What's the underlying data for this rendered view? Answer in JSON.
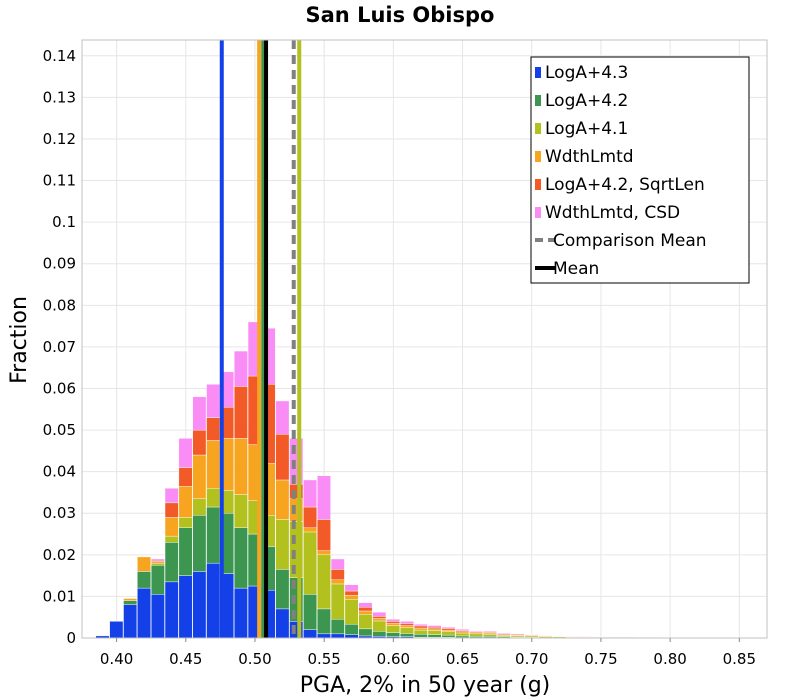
{
  "chart_data": {
    "type": "bar",
    "stacked": true,
    "title": "San Luis Obispo",
    "xlabel": "PGA, 2% in 50 year (g)",
    "ylabel": "Fraction",
    "xlim": [
      0.375,
      0.87
    ],
    "ylim": [
      0,
      0.1438
    ],
    "xticks": [
      "0.40",
      "0.45",
      "0.50",
      "0.55",
      "0.60",
      "0.65",
      "0.70",
      "0.75",
      "0.80",
      "0.85"
    ],
    "yticks": [
      "0",
      "0.01",
      "0.02",
      "0.03",
      "0.04",
      "0.05",
      "0.06",
      "0.07",
      "0.08",
      "0.09",
      "0.1",
      "0.11",
      "0.12",
      "0.13",
      "0.14"
    ],
    "grid": true,
    "legend_position": "top-right",
    "bin_width": 0.01,
    "x": [
      0.39,
      0.4,
      0.41,
      0.42,
      0.43,
      0.44,
      0.45,
      0.46,
      0.47,
      0.48,
      0.49,
      0.5,
      0.51,
      0.52,
      0.53,
      0.54,
      0.55,
      0.56,
      0.57,
      0.58,
      0.59,
      0.6,
      0.61,
      0.62,
      0.63,
      0.64,
      0.65,
      0.66,
      0.67,
      0.68,
      0.69,
      0.7,
      0.71,
      0.72,
      0.73,
      0.74,
      0.75,
      0.76,
      0.77,
      0.78,
      0.79,
      0.8,
      0.81,
      0.82,
      0.83,
      0.84,
      0.85
    ],
    "series": [
      {
        "name": "LogA+4.3",
        "color": "#1440e8",
        "values": [
          0.0005,
          0.004,
          0.008,
          0.012,
          0.0105,
          0.0135,
          0.015,
          0.016,
          0.018,
          0.0155,
          0.012,
          0.0125,
          0.0115,
          0.007,
          0.004,
          0.002,
          0.001,
          0.001,
          0.0008,
          0.0005,
          0.0004,
          0.0003,
          0.0003,
          0.0002,
          0.0002,
          0.0002,
          0.0001,
          0.0001,
          0.0001,
          0.0001,
          0,
          0,
          0,
          0,
          0,
          0,
          0,
          0,
          0,
          0,
          0,
          0,
          0,
          0,
          0,
          0,
          0
        ]
      },
      {
        "name": "LogA+4.2",
        "color": "#3c9650",
        "values": [
          0,
          0,
          0.001,
          0.004,
          0.007,
          0.0095,
          0.0115,
          0.0135,
          0.0135,
          0.0145,
          0.0145,
          0.0125,
          0.0105,
          0.0095,
          0.0105,
          0.0085,
          0.006,
          0.0035,
          0.0025,
          0.0017,
          0.0012,
          0.001,
          0.0008,
          0.0007,
          0.0006,
          0.0005,
          0.0004,
          0.0003,
          0.0003,
          0.0002,
          0.0002,
          0.0002,
          0.0001,
          0.0001,
          0.0001,
          0,
          0,
          0,
          0,
          0,
          0,
          0,
          0,
          0,
          0,
          0,
          0
        ]
      },
      {
        "name": "LogA+4.1",
        "color": "#b3c11e",
        "values": [
          0,
          0,
          0,
          0,
          0.0005,
          0.0015,
          0.0025,
          0.004,
          0.0045,
          0.0055,
          0.008,
          0.008,
          0.0075,
          0.012,
          0.0135,
          0.015,
          0.013,
          0.0085,
          0.006,
          0.0035,
          0.0025,
          0.0017,
          0.0014,
          0.001,
          0.001,
          0.0008,
          0.0007,
          0.0006,
          0.0005,
          0.0003,
          0.0003,
          0.0003,
          0.0002,
          0.0002,
          0.0001,
          0.0001,
          0.0001,
          0.0001,
          0.0001,
          0,
          0,
          0,
          0,
          0,
          0,
          0,
          0
        ]
      },
      {
        "name": "WdthLmtd",
        "color": "#f7a521",
        "values": [
          0,
          0,
          0.0005,
          0.0035,
          0.0005,
          0.0045,
          0.0075,
          0.0105,
          0.0115,
          0.0125,
          0.0135,
          0.0135,
          0.0125,
          0.0095,
          0.0055,
          0.001,
          0.001,
          0.001,
          0.001,
          0.0008,
          0.0006,
          0.0005,
          0.0005,
          0.0005,
          0.0004,
          0.0004,
          0.0003,
          0.0003,
          0.0003,
          0.0002,
          0.0002,
          0.0002,
          0.0002,
          0.0001,
          0.0001,
          0.0001,
          0.0001,
          0.0001,
          0.0001,
          0.0001,
          0.0001,
          0.0001,
          0.0001,
          0.0001,
          0.0001,
          0.0001,
          0.0001
        ]
      },
      {
        "name": "LogA+4.2, SqrtLen",
        "color": "#f25a28",
        "values": [
          0,
          0,
          0,
          0,
          0,
          0.0035,
          0.0045,
          0.006,
          0.0055,
          0.0075,
          0.0125,
          0.0165,
          0.019,
          0.011,
          0.0035,
          0.005,
          0.0075,
          0.0025,
          0.001,
          0.0009,
          0.0005,
          0.0005,
          0.0005,
          0.0005,
          0.0004,
          0.0004,
          0.0003,
          0.0002,
          0.0002,
          0.0002,
          0.0002,
          0.0001,
          0.0001,
          0.0001,
          0.0001,
          0.0001,
          0,
          0,
          0,
          0,
          0,
          0,
          0,
          0,
          0,
          0,
          0
        ]
      },
      {
        "name": "WdthLmtd, CSD",
        "color": "#fa8cf5",
        "values": [
          0,
          0,
          0,
          0,
          0.0005,
          0.0035,
          0.007,
          0.008,
          0.008,
          0.0085,
          0.0085,
          0.013,
          0.0135,
          0.008,
          0.011,
          0.0065,
          0.0105,
          0.0025,
          0.0015,
          0.0011,
          0.001,
          0.0005,
          0.0005,
          0.0004,
          0.0004,
          0.0003,
          0.0003,
          0.0002,
          0.0002,
          0.0002,
          0.0001,
          0.0001,
          0.0001,
          0.0001,
          0.0001,
          0.0001,
          0.0001,
          0.0001,
          0.0001,
          0.0001,
          0.0001,
          0,
          0,
          0,
          0,
          0,
          0
        ]
      }
    ],
    "mean_lines": [
      {
        "series": "LogA+4.3",
        "x": 0.476,
        "color": "#1440e8",
        "style": "solid"
      },
      {
        "series": "WdthLmtd",
        "x": 0.503,
        "color": "#f7a521",
        "style": "solid"
      },
      {
        "series": "LogA+4.2",
        "x": 0.506,
        "color": "#3c9650",
        "style": "solid"
      },
      {
        "series": "LogA+4.1",
        "x": 0.532,
        "color": "#b3c11e",
        "style": "solid"
      },
      {
        "name": "Comparison Mean",
        "x": 0.528,
        "color": "#808080",
        "style": "dashed"
      },
      {
        "name": "Mean",
        "x": 0.508,
        "color": "#000000",
        "style": "solid"
      }
    ],
    "legend": [
      {
        "label": "LogA+4.3",
        "color": "#1440e8",
        "kind": "box"
      },
      {
        "label": "LogA+4.2",
        "color": "#3c9650",
        "kind": "box"
      },
      {
        "label": "LogA+4.1",
        "color": "#b3c11e",
        "kind": "box"
      },
      {
        "label": "WdthLmtd",
        "color": "#f7a521",
        "kind": "box"
      },
      {
        "label": "LogA+4.2, SqrtLen",
        "color": "#f25a28",
        "kind": "box"
      },
      {
        "label": "WdthLmtd, CSD",
        "color": "#fa8cf5",
        "kind": "box"
      },
      {
        "label": "Comparison Mean",
        "color": "#808080",
        "kind": "dashed"
      },
      {
        "label": "Mean",
        "color": "#000000",
        "kind": "solid"
      }
    ]
  }
}
